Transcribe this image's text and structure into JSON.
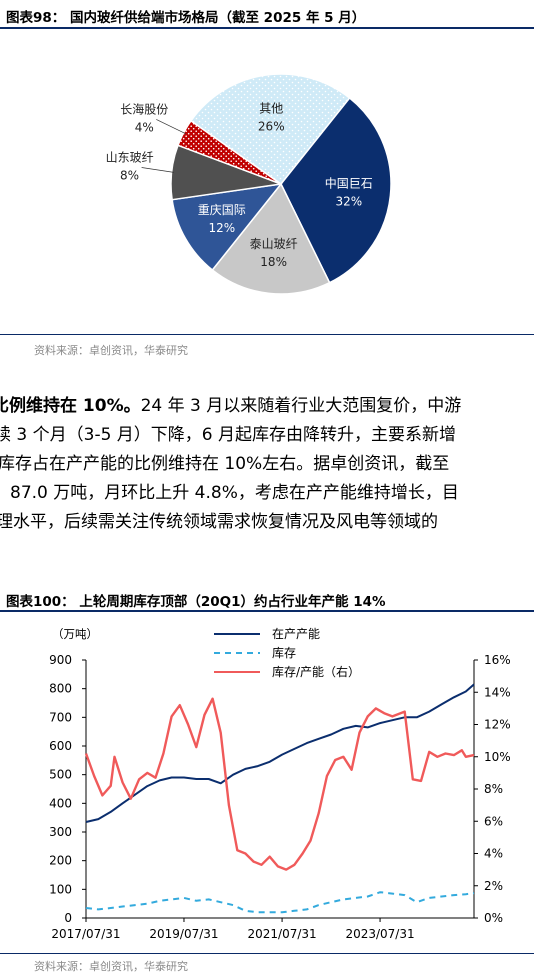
{
  "figure1": {
    "title": "图表98：  国内玻纤供给端市场格局（截至 2025 年 5 月）",
    "source": "资料来源：卓创资讯，华泰研究"
  },
  "body": {
    "lines": [
      {
        "bold": "比例维持在 10%。",
        "text": "24 年 3 月以来随着行业大范围复价，中游"
      },
      {
        "bold": "",
        "text": "续 3 个月（3-5 月）下降，6 月起库存由降转升，主要系新增"
      },
      {
        "bold": "",
        "text": "库存占在产产能的比例维持在 10%左右。据卓创资讯，截至"
      },
      {
        "bold": "",
        "text": "87.0 万吨，月环比上升 4.8%，考虑在产产能维持增长，目"
      },
      {
        "bold": "",
        "text": "理水平，后续需关注传统领域需求恢复情况及风电等领域的"
      }
    ]
  },
  "figure2": {
    "title": "图表100：  上轮周期库存顶部（20Q1）约占行业年产能 14%",
    "source": "资料来源：卓创资讯，华泰研究"
  },
  "chart_data": [
    {
      "type": "pie",
      "title": "",
      "slices": [
        {
          "name": "其他",
          "value": 26,
          "label": "26%",
          "color": "#cfeaf7",
          "pattern": "dots"
        },
        {
          "name": "中国巨石",
          "value": 32,
          "label": "32%",
          "color": "#0b2e6e"
        },
        {
          "name": "泰山玻纤",
          "value": 18,
          "label": "18%",
          "color": "#c8c8c8"
        },
        {
          "name": "重庆国际",
          "value": 12,
          "label": "12%",
          "color": "#2f5597"
        },
        {
          "name": "山东玻纤",
          "value": 8,
          "label": "8%",
          "color": "#505050"
        },
        {
          "name": "长海股份",
          "value": 4,
          "label": "4%",
          "color": "#c00000",
          "pattern": "dots"
        }
      ]
    },
    {
      "type": "line",
      "title": "",
      "ylabel_left": "（万吨）",
      "ylim_left": [
        0,
        900
      ],
      "yticks_left": [
        "0",
        "100",
        "200",
        "300",
        "400",
        "500",
        "600",
        "700",
        "800",
        "900"
      ],
      "ylim_right": [
        0,
        16
      ],
      "yticks_right": [
        "0%",
        "2%",
        "4%",
        "6%",
        "8%",
        "10%",
        "12%",
        "14%",
        "16%"
      ],
      "x_range": [
        "2017-07-31",
        "2025-06-30"
      ],
      "x_ticks": [
        "2017/07/31",
        "2019/07/31",
        "2021/07/31",
        "2023/07/31"
      ],
      "legend_position": "top-center",
      "series": [
        {
          "name": "在产产能",
          "axis": "left",
          "color": "#0b2e6e",
          "style": "solid",
          "points": [
            [
              "2017-07-31",
              335
            ],
            [
              "2017-10-31",
              345
            ],
            [
              "2018-01-31",
              370
            ],
            [
              "2018-04-30",
              400
            ],
            [
              "2018-07-31",
              430
            ],
            [
              "2018-10-31",
              460
            ],
            [
              "2019-01-31",
              480
            ],
            [
              "2019-04-30",
              490
            ],
            [
              "2019-07-31",
              490
            ],
            [
              "2019-10-31",
              485
            ],
            [
              "2020-01-31",
              485
            ],
            [
              "2020-04-30",
              470
            ],
            [
              "2020-07-31",
              500
            ],
            [
              "2020-10-31",
              520
            ],
            [
              "2021-01-31",
              530
            ],
            [
              "2021-04-30",
              545
            ],
            [
              "2021-07-31",
              570
            ],
            [
              "2021-10-31",
              590
            ],
            [
              "2022-01-31",
              610
            ],
            [
              "2022-04-30",
              625
            ],
            [
              "2022-07-31",
              640
            ],
            [
              "2022-10-31",
              660
            ],
            [
              "2023-01-31",
              670
            ],
            [
              "2023-04-30",
              665
            ],
            [
              "2023-07-31",
              680
            ],
            [
              "2023-10-31",
              690
            ],
            [
              "2024-01-31",
              700
            ],
            [
              "2024-04-30",
              700
            ],
            [
              "2024-07-31",
              720
            ],
            [
              "2024-10-31",
              745
            ],
            [
              "2025-01-31",
              770
            ],
            [
              "2025-04-30",
              790
            ],
            [
              "2025-06-30",
              815
            ]
          ]
        },
        {
          "name": "库存",
          "axis": "left",
          "color": "#33aadd",
          "style": "dashed",
          "points": [
            [
              "2017-07-31",
              35
            ],
            [
              "2017-10-31",
              30
            ],
            [
              "2018-01-31",
              35
            ],
            [
              "2018-04-30",
              40
            ],
            [
              "2018-07-31",
              45
            ],
            [
              "2018-10-31",
              50
            ],
            [
              "2019-01-31",
              60
            ],
            [
              "2019-04-30",
              65
            ],
            [
              "2019-07-31",
              70
            ],
            [
              "2019-10-31",
              60
            ],
            [
              "2020-01-31",
              65
            ],
            [
              "2020-04-30",
              55
            ],
            [
              "2020-07-31",
              45
            ],
            [
              "2020-10-31",
              25
            ],
            [
              "2021-01-31",
              20
            ],
            [
              "2021-04-30",
              20
            ],
            [
              "2021-07-31",
              20
            ],
            [
              "2021-10-31",
              25
            ],
            [
              "2022-01-31",
              30
            ],
            [
              "2022-04-30",
              45
            ],
            [
              "2022-07-31",
              55
            ],
            [
              "2022-10-31",
              65
            ],
            [
              "2023-01-31",
              70
            ],
            [
              "2023-04-30",
              75
            ],
            [
              "2023-07-31",
              90
            ],
            [
              "2023-10-31",
              85
            ],
            [
              "2024-01-31",
              80
            ],
            [
              "2024-04-30",
              55
            ],
            [
              "2024-07-31",
              70
            ],
            [
              "2024-10-31",
              75
            ],
            [
              "2025-01-31",
              80
            ],
            [
              "2025-04-30",
              83
            ],
            [
              "2025-06-30",
              87
            ]
          ]
        },
        {
          "name": "库存/产能（右）",
          "axis": "right",
          "color": "#f05a5a",
          "style": "solid",
          "points": [
            [
              "2017-07-31",
              10.2
            ],
            [
              "2017-09-30",
              8.8
            ],
            [
              "2017-11-30",
              7.6
            ],
            [
              "2018-01-31",
              8.2
            ],
            [
              "2018-02-28",
              10.0
            ],
            [
              "2018-04-30",
              8.4
            ],
            [
              "2018-06-30",
              7.4
            ],
            [
              "2018-08-31",
              8.6
            ],
            [
              "2018-10-31",
              9.0
            ],
            [
              "2018-12-31",
              8.7
            ],
            [
              "2019-02-28",
              10.2
            ],
            [
              "2019-04-30",
              12.5
            ],
            [
              "2019-06-30",
              13.2
            ],
            [
              "2019-08-31",
              12.0
            ],
            [
              "2019-10-31",
              10.6
            ],
            [
              "2019-12-31",
              12.6
            ],
            [
              "2020-02-29",
              13.6
            ],
            [
              "2020-04-30",
              11.5
            ],
            [
              "2020-06-30",
              7.0
            ],
            [
              "2020-08-31",
              4.2
            ],
            [
              "2020-10-31",
              4.0
            ],
            [
              "2020-12-31",
              3.5
            ],
            [
              "2021-02-28",
              3.3
            ],
            [
              "2021-04-30",
              3.8
            ],
            [
              "2021-06-30",
              3.2
            ],
            [
              "2021-08-31",
              3.0
            ],
            [
              "2021-10-31",
              3.3
            ],
            [
              "2021-12-31",
              4.0
            ],
            [
              "2022-02-28",
              4.8
            ],
            [
              "2022-04-30",
              6.5
            ],
            [
              "2022-06-30",
              8.8
            ],
            [
              "2022-08-31",
              9.8
            ],
            [
              "2022-10-31",
              10.0
            ],
            [
              "2022-12-31",
              9.2
            ],
            [
              "2023-02-28",
              11.5
            ],
            [
              "2023-04-30",
              12.5
            ],
            [
              "2023-06-30",
              13.0
            ],
            [
              "2023-08-31",
              12.7
            ],
            [
              "2023-10-31",
              12.5
            ],
            [
              "2024-01-31",
              12.8
            ],
            [
              "2024-03-31",
              8.6
            ],
            [
              "2024-05-31",
              8.5
            ],
            [
              "2024-07-31",
              10.3
            ],
            [
              "2024-09-30",
              10.0
            ],
            [
              "2024-11-30",
              10.2
            ],
            [
              "2025-01-31",
              10.1
            ],
            [
              "2025-03-31",
              10.4
            ],
            [
              "2025-04-30",
              10.0
            ],
            [
              "2025-06-30",
              10.1
            ]
          ]
        }
      ]
    }
  ]
}
